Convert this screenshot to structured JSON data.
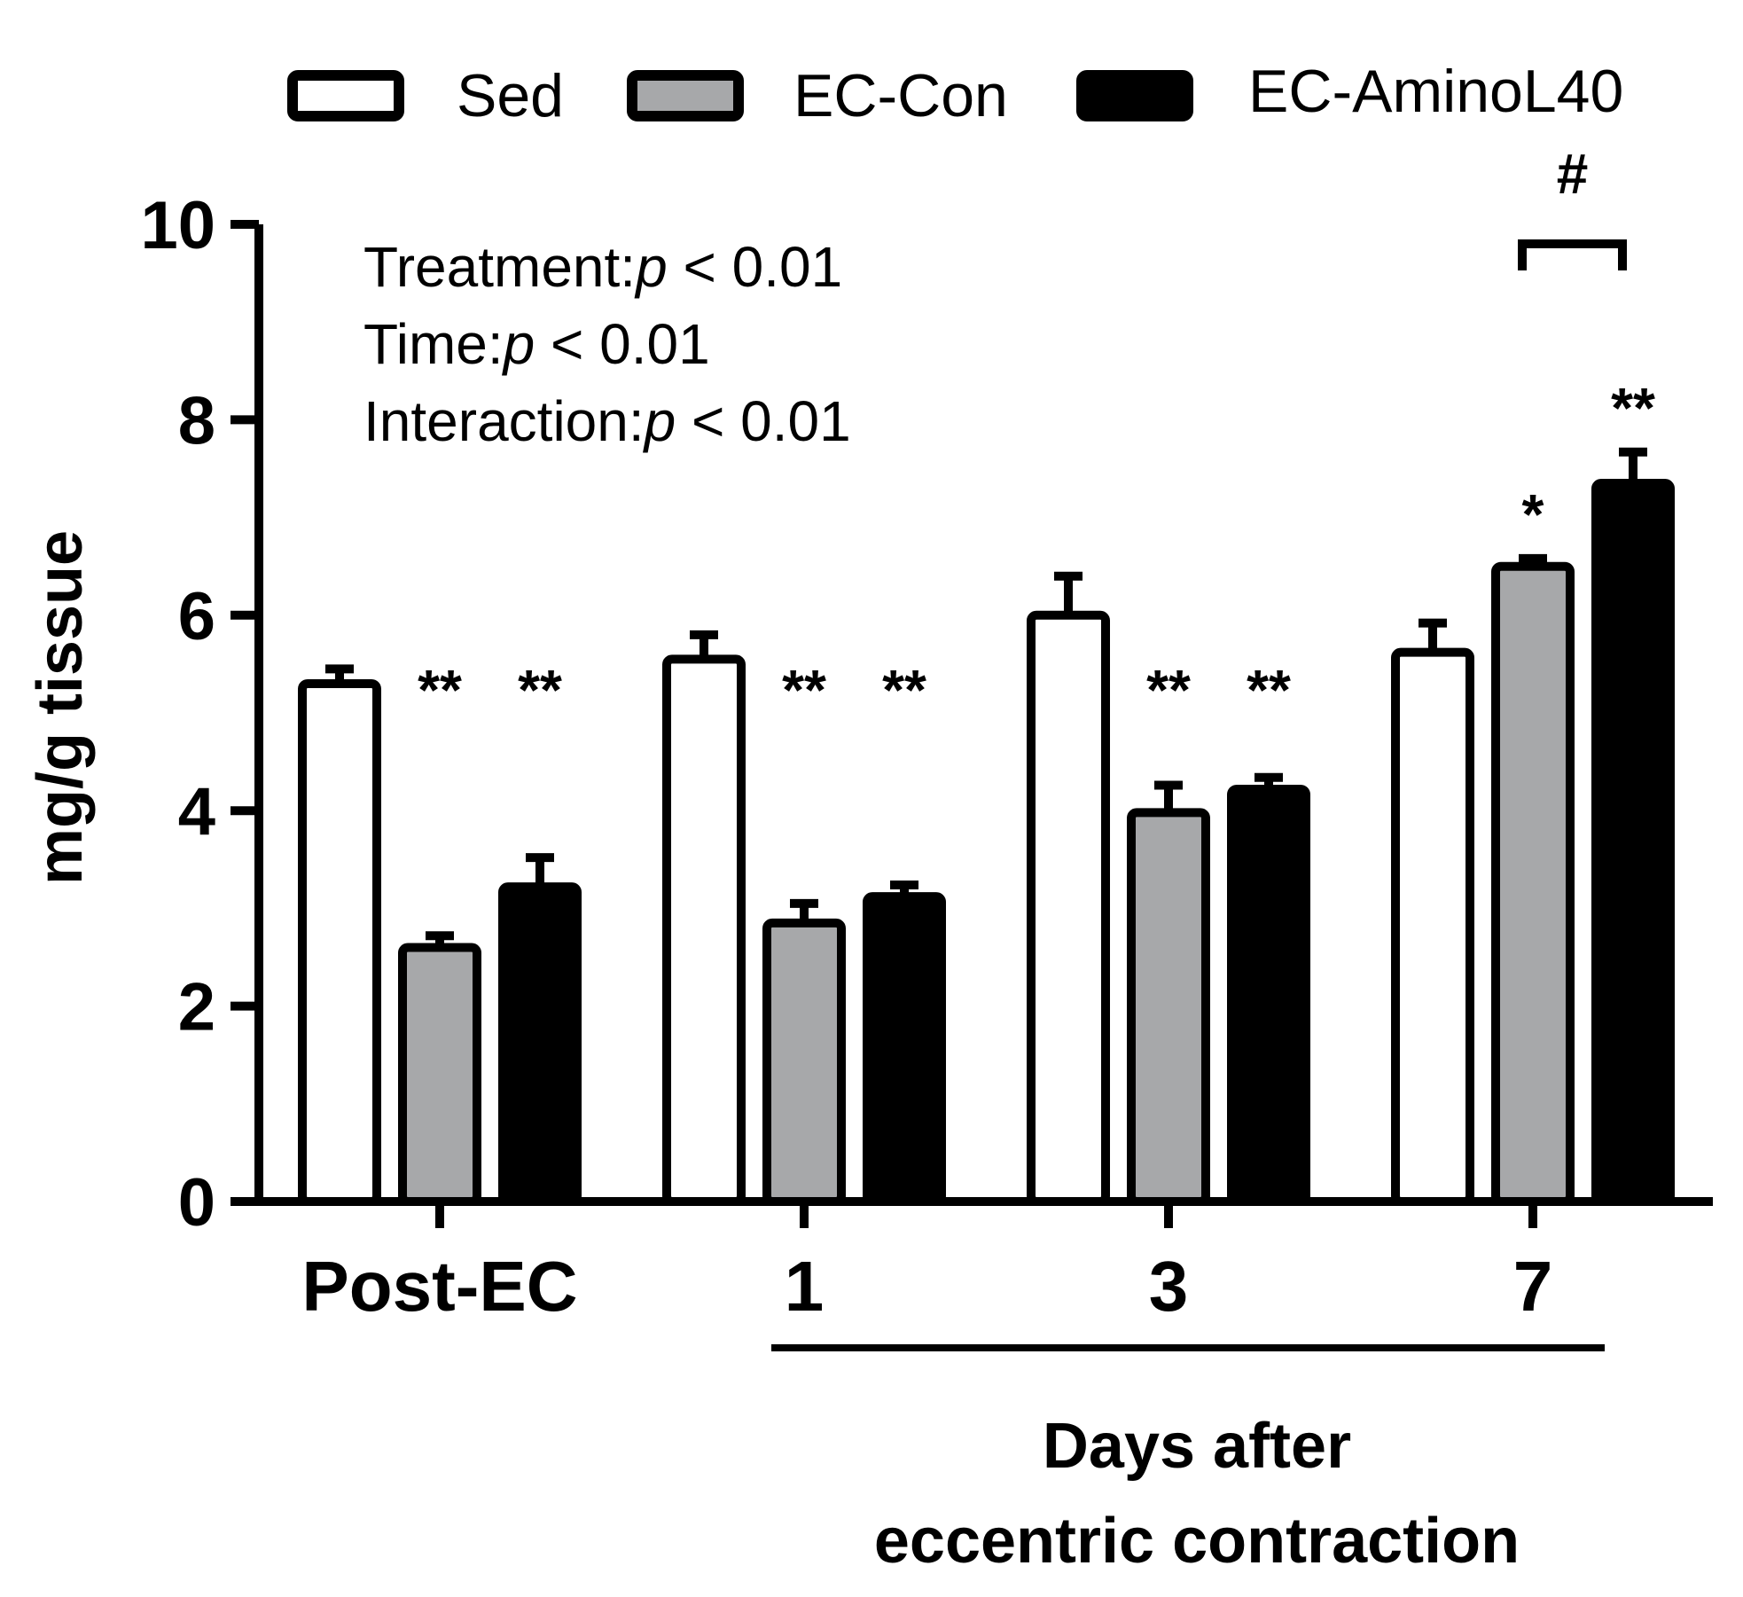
{
  "chart_data": {
    "type": "bar",
    "ylabel": "mg/g tissue",
    "ylim": [
      0,
      10
    ],
    "yticks": [
      0,
      2,
      4,
      6,
      8,
      10
    ],
    "categories": [
      "Post-EC",
      "1",
      "3",
      "7"
    ],
    "xlabel_line1": "Days after",
    "xlabel_line2": "eccentric contraction",
    "series": [
      {
        "name": "Sed",
        "values": [
          5.3,
          5.55,
          6.0,
          5.62
        ],
        "errors": [
          0.15,
          0.25,
          0.4,
          0.3
        ],
        "color": "#ffffff"
      },
      {
        "name": "EC-Con",
        "values": [
          2.6,
          2.85,
          3.98,
          6.5
        ],
        "errors": [
          0.12,
          0.2,
          0.28,
          0.08
        ],
        "color": "#a7a8aa"
      },
      {
        "name": "EC-AminoL40",
        "values": [
          3.22,
          3.12,
          4.22,
          7.35
        ],
        "errors": [
          0.3,
          0.12,
          0.12,
          0.32
        ],
        "color": "#000000"
      }
    ],
    "significance": [
      [
        "",
        "**",
        "**"
      ],
      [
        "",
        "**",
        "**"
      ],
      [
        "",
        "**",
        "**"
      ],
      [
        "",
        "*",
        "**"
      ]
    ],
    "bracket": {
      "group": 3,
      "from_series": 1,
      "to_series": 2,
      "label": "#"
    },
    "stats": {
      "line1_prefix": "Treatment:",
      "line1_p": "p",
      "line1_suffix": " < 0.01",
      "line2_prefix": "Time:",
      "line2_p": "p",
      "line2_suffix": " < 0.01",
      "line3_prefix": "Interaction:",
      "line3_p": "p",
      "line3_suffix": " < 0.01"
    }
  }
}
